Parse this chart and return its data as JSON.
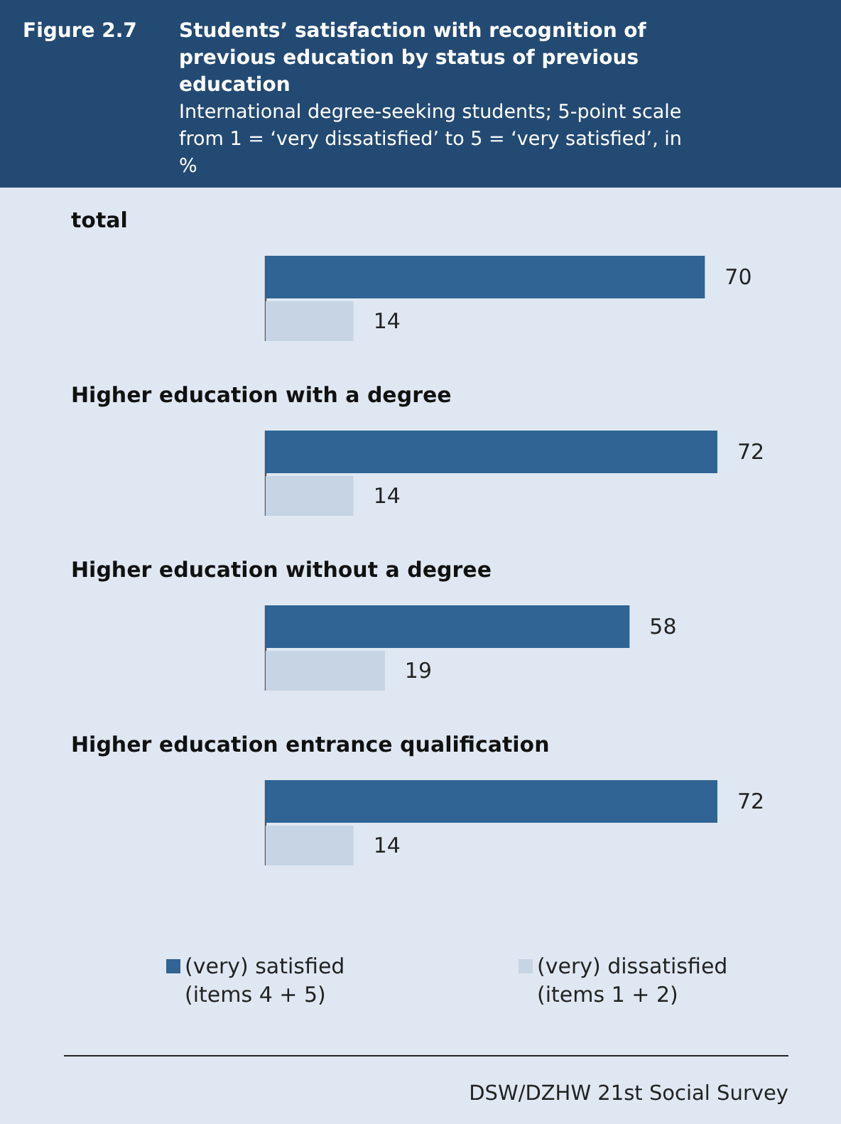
{
  "chart_data": {
    "type": "bar",
    "orientation": "horizontal",
    "title": "Figure 2.7 Students’ satisfaction with recognition of previous education by status of previous education",
    "subtitle": "International degree-seeking students; 5-point scale from 1 = ‘very dissatisfied’ to 5 = ‘very satisfied’, in %",
    "categories": [
      "total",
      "Higher education with a degree",
      "Higher education without a degree",
      "Higher education entrance qualification"
    ],
    "series": [
      {
        "name": "(very) satisfied (items 4 + 5)",
        "color": "#2f6494",
        "values": [
          70,
          72,
          58,
          72
        ]
      },
      {
        "name": "(very) dissatisfied (items 1 + 2)",
        "color": "#c6d4e4",
        "values": [
          14,
          14,
          19,
          14
        ]
      }
    ],
    "data_labels": true,
    "legend": "bottom",
    "annotations": [
      "DSW/DZHW 21st Social Survey"
    ]
  }
}
